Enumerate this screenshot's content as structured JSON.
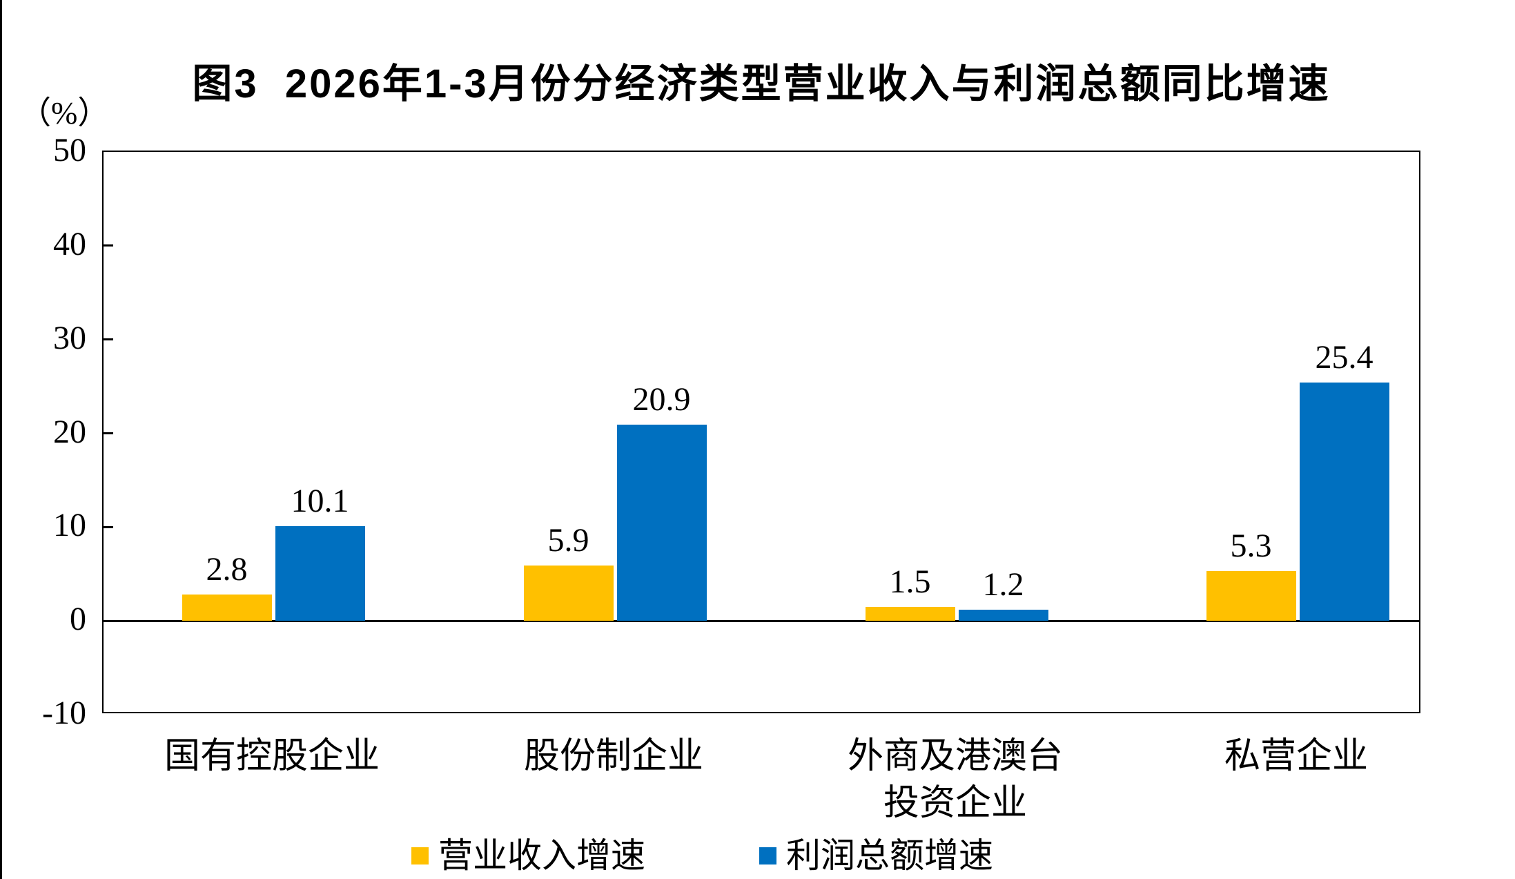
{
  "page": {
    "left_border_color": "#000000",
    "background_color": "#ffffff"
  },
  "chart_data": {
    "type": "bar",
    "title": "图3  2026年1-3月份分经济类型营业收入与利润总额同比增速",
    "unit_label": "（%）",
    "categories": [
      [
        "国有控股企业"
      ],
      [
        "股份制企业"
      ],
      [
        "外商及港澳台",
        "投资企业"
      ],
      [
        "私营企业"
      ]
    ],
    "series": [
      {
        "key": "revenue-growth",
        "name": "营业收入增速",
        "color": "#FFC000",
        "values": [
          2.8,
          5.9,
          1.5,
          5.3
        ]
      },
      {
        "key": "profit-growth",
        "name": "利润总额增速",
        "color": "#0070C0",
        "values": [
          10.1,
          20.9,
          1.2,
          25.4
        ]
      }
    ],
    "ylim": [
      -10,
      50
    ],
    "yticks": [
      50,
      40,
      30,
      20,
      10,
      0,
      -10
    ],
    "inner_tick_values": [
      40,
      30,
      20,
      10
    ],
    "grid": false,
    "axis_color": "#000000",
    "legend_position": "bottom",
    "value_label_decimals": 1
  }
}
